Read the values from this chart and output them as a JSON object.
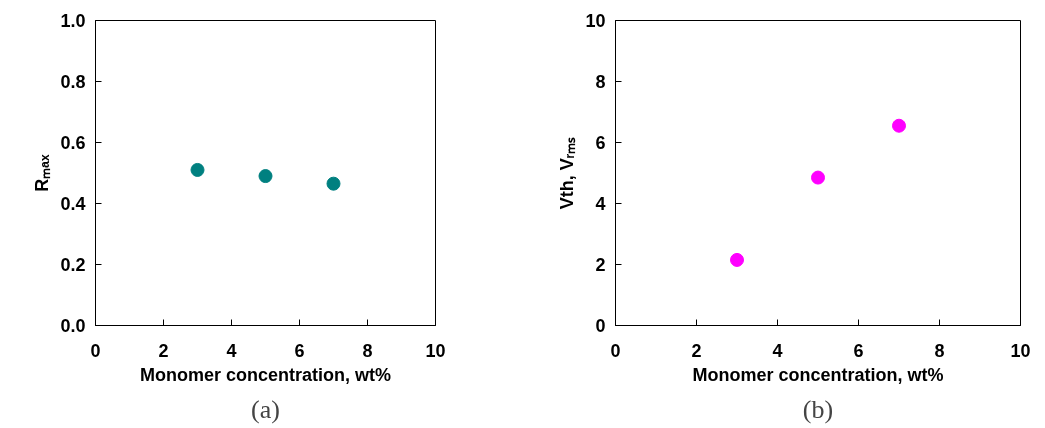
{
  "chart_data": [
    {
      "type": "scatter",
      "xlabel": "Monomer concentration, wt%",
      "ylabel": "Rₘₐₓ",
      "annotations": [
        "(a)"
      ],
      "x": [
        3,
        5,
        7
      ],
      "series": [
        {
          "color": "#008080",
          "values": [
            0.51,
            0.49,
            0.465
          ]
        }
      ],
      "marker": "circle",
      "xlim": [
        0,
        10
      ],
      "ylim": [
        0,
        1
      ],
      "xticks": [
        0,
        2,
        4,
        6,
        8,
        10
      ],
      "yticks": [
        {
          "value": 0,
          "label": "0.0"
        },
        {
          "value": 0.2,
          "label": "0.2"
        },
        {
          "value": 0.4,
          "label": "0.4"
        },
        {
          "value": 0.6,
          "label": "0.6"
        },
        {
          "value": 0.8,
          "label": "0.8"
        },
        {
          "value": 1,
          "label": "1.0"
        }
      ],
      "grid": false
    },
    {
      "type": "scatter",
      "xlabel": "Monomer concentration, wt%",
      "ylabel": "Vth, Vᵣₘₛ",
      "annotations": [
        "(b)"
      ],
      "x": [
        3,
        5,
        7
      ],
      "series": [
        {
          "color": "#ff00ff",
          "values": [
            2.15,
            4.85,
            6.55
          ]
        }
      ],
      "marker": "circle",
      "xlim": [
        0,
        10
      ],
      "ylim": [
        0,
        10
      ],
      "xticks": [
        0,
        2,
        4,
        6,
        8,
        10
      ],
      "yticks": [
        0,
        2,
        4,
        6,
        8,
        10
      ],
      "grid": false
    }
  ]
}
